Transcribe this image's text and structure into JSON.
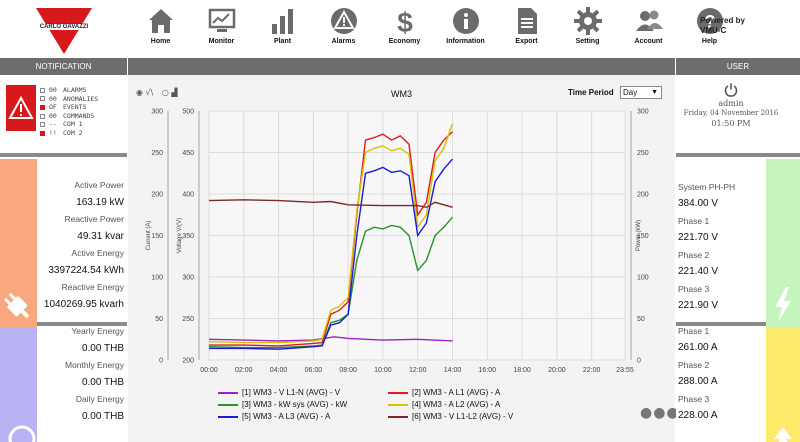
{
  "header": {
    "logo_text": "CARLO GAVAZZI",
    "nav": [
      {
        "label": "Home",
        "icon": "home-icon"
      },
      {
        "label": "Monitor",
        "icon": "monitor-icon"
      },
      {
        "label": "Plant",
        "icon": "bar-chart-icon"
      },
      {
        "label": "Alarms",
        "icon": "warning-icon"
      },
      {
        "label": "Economy",
        "icon": "dollar-icon"
      },
      {
        "label": "Information",
        "icon": "info-icon"
      },
      {
        "label": "Export",
        "icon": "document-icon"
      },
      {
        "label": "Setting",
        "icon": "gear-icon"
      },
      {
        "label": "Account",
        "icon": "users-icon"
      },
      {
        "label": "Help",
        "icon": "help-icon"
      }
    ],
    "powered_by_line1": "Powered by",
    "powered_by_line2": "VMU-C"
  },
  "notification": {
    "title": "NOTIFICATION",
    "items": [
      {
        "value": "00",
        "label": "ALARMS",
        "active": false
      },
      {
        "value": "00",
        "label": "ANOMALIES",
        "active": false
      },
      {
        "value": "OF",
        "label": "EVENTS",
        "active": true
      },
      {
        "value": "00",
        "label": "COMMANDS",
        "active": false
      },
      {
        "value": "--",
        "label": "COM 1",
        "active": false
      },
      {
        "value": "!!",
        "label": "COM 2",
        "active": true
      }
    ]
  },
  "user": {
    "title": "USER",
    "name": "admin",
    "date": "Friday, 04 November 2016",
    "time": "01:50 PM"
  },
  "left_metrics": [
    {
      "label": "Active Power",
      "value": "163.19 kW"
    },
    {
      "label": "Reactive Power",
      "value": "49.31 kvar"
    },
    {
      "label": "Active Energy",
      "value": "3397224.54 kWh"
    },
    {
      "label": "Reactive Energy",
      "value": "1040269.95 kvarh"
    },
    {
      "label": "Yearly Energy",
      "value": "0.00 THB"
    },
    {
      "label": "Monthly Energy",
      "value": "0.00 THB"
    },
    {
      "label": "Daily Energy",
      "value": "0.00 THB"
    }
  ],
  "right_metrics": [
    {
      "label": "System PH-PH",
      "value": "384.00 V"
    },
    {
      "label": "Phase 1",
      "value": "221.70 V"
    },
    {
      "label": "Phase 2",
      "value": "221.40 V"
    },
    {
      "label": "Phase 3",
      "value": "221.90 V"
    },
    {
      "label": "Phase 1",
      "value": "261.00 A"
    },
    {
      "label": "Phase 2",
      "value": "288.00 A"
    },
    {
      "label": "Phase 3",
      "value": "228.00 A"
    }
  ],
  "colors": {
    "alarm_red": "#d7191c",
    "orange": "#f9a77e",
    "purple": "#b8b4f4",
    "green": "#c6f4bd",
    "yellow": "#fde96a"
  },
  "chart_controls": {
    "period_label": "Time Period",
    "period_value": "Day"
  },
  "chart_data": {
    "type": "line",
    "title": "WM3",
    "x_ticks": [
      "00:00",
      "02:00",
      "04:00",
      "06:00",
      "08:00",
      "10:00",
      "12:00",
      "14:00",
      "16:00",
      "18:00",
      "20:00",
      "22:00",
      "23:55"
    ],
    "axes": {
      "current": {
        "label": "Current (A)",
        "ticks": [
          "0",
          "50",
          "100",
          "150",
          "200",
          "250",
          "300"
        ],
        "ylim": [
          0,
          300
        ]
      },
      "voltage": {
        "label": "Voltage V/(V)",
        "ticks": [
          "200",
          "250",
          "300",
          "350",
          "400",
          "450",
          "500"
        ],
        "ylim": [
          200,
          500
        ]
      },
      "power": {
        "label": "Power (kW)",
        "ticks": [
          "0",
          "50",
          "100",
          "150",
          "200",
          "250",
          "300"
        ],
        "ylim": [
          0,
          300
        ]
      }
    },
    "x_unit": "hours",
    "series": [
      {
        "name": "[1] WM3 - V L1-N (AVG) - V",
        "color": "#a020c0",
        "axis": "voltage",
        "points": [
          [
            0,
            225
          ],
          [
            2,
            224
          ],
          [
            4,
            223
          ],
          [
            6,
            224
          ],
          [
            7.2,
            228
          ],
          [
            8,
            226
          ],
          [
            10,
            224
          ],
          [
            12,
            225
          ],
          [
            14,
            223
          ]
        ]
      },
      {
        "name": "[2] WM3 - A L1 (AVG) - A",
        "color": "#e01b1b",
        "axis": "current",
        "points": [
          [
            0,
            18
          ],
          [
            2,
            18
          ],
          [
            4,
            17
          ],
          [
            6,
            20
          ],
          [
            6.5,
            21
          ],
          [
            7,
            55
          ],
          [
            7.5,
            60
          ],
          [
            8,
            70
          ],
          [
            8.5,
            175
          ],
          [
            9,
            265
          ],
          [
            9.5,
            268
          ],
          [
            10,
            272
          ],
          [
            10.5,
            265
          ],
          [
            11,
            270
          ],
          [
            11.5,
            260
          ],
          [
            12,
            175
          ],
          [
            12.5,
            190
          ],
          [
            13,
            250
          ],
          [
            13.5,
            265
          ],
          [
            14,
            275
          ]
        ]
      },
      {
        "name": "[3] WM3 - kW sys (AVG) - kW",
        "color": "#2f8f2f",
        "axis": "power",
        "points": [
          [
            0,
            16
          ],
          [
            2,
            15
          ],
          [
            4,
            15
          ],
          [
            6,
            17
          ],
          [
            6.5,
            18
          ],
          [
            7,
            45
          ],
          [
            7.5,
            48
          ],
          [
            8,
            55
          ],
          [
            8.5,
            120
          ],
          [
            9,
            155
          ],
          [
            9.5,
            160
          ],
          [
            10,
            158
          ],
          [
            10.5,
            162
          ],
          [
            11,
            160
          ],
          [
            11.5,
            150
          ],
          [
            12,
            108
          ],
          [
            12.5,
            120
          ],
          [
            13,
            150
          ],
          [
            13.5,
            160
          ],
          [
            14,
            172
          ]
        ]
      },
      {
        "name": "[4] WM3 - A L2 (AVG) - A",
        "color": "#d6c200",
        "axis": "current",
        "points": [
          [
            0,
            22
          ],
          [
            2,
            21
          ],
          [
            4,
            21
          ],
          [
            6,
            23
          ],
          [
            6.5,
            25
          ],
          [
            7,
            60
          ],
          [
            7.5,
            65
          ],
          [
            8,
            75
          ],
          [
            8.5,
            180
          ],
          [
            9,
            250
          ],
          [
            9.5,
            255
          ],
          [
            10,
            258
          ],
          [
            10.5,
            252
          ],
          [
            11,
            255
          ],
          [
            11.5,
            248
          ],
          [
            12,
            160
          ],
          [
            12.5,
            175
          ],
          [
            13,
            240
          ],
          [
            13.5,
            255
          ],
          [
            14,
            285
          ]
        ]
      },
      {
        "name": "[5] WM3 - A L3 (AVG) - A",
        "color": "#1a1ad8",
        "axis": "current",
        "points": [
          [
            0,
            14
          ],
          [
            2,
            14
          ],
          [
            4,
            13
          ],
          [
            6,
            16
          ],
          [
            6.5,
            17
          ],
          [
            7,
            42
          ],
          [
            7.5,
            45
          ],
          [
            8,
            55
          ],
          [
            8.5,
            150
          ],
          [
            9,
            225
          ],
          [
            9.5,
            228
          ],
          [
            10,
            232
          ],
          [
            10.5,
            226
          ],
          [
            11,
            228
          ],
          [
            11.5,
            222
          ],
          [
            12,
            150
          ],
          [
            12.5,
            165
          ],
          [
            13,
            215
          ],
          [
            13.5,
            230
          ],
          [
            14,
            242
          ]
        ]
      },
      {
        "name": "[6] WM3 - V L1-L2 (AVG) - V",
        "color": "#7a2a2a",
        "axis": "voltage",
        "points": [
          [
            0,
            392
          ],
          [
            2,
            393
          ],
          [
            4,
            392
          ],
          [
            6,
            390
          ],
          [
            7,
            391
          ],
          [
            8,
            387
          ],
          [
            10,
            386
          ],
          [
            12,
            386
          ],
          [
            12.5,
            384
          ],
          [
            13,
            390
          ],
          [
            14,
            384
          ]
        ]
      }
    ]
  }
}
